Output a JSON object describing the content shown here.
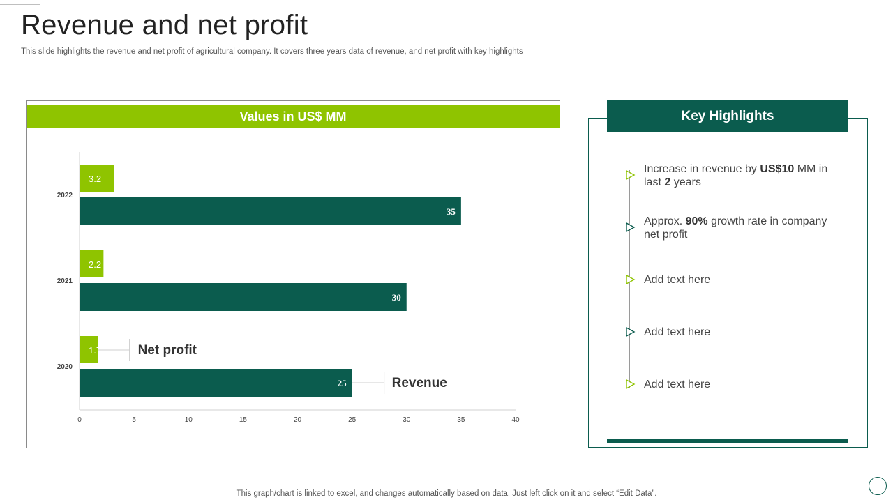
{
  "slide": {
    "title": "Revenue and net profit",
    "subtitle": "This slide highlights the revenue and net profit of agricultural company. It covers three years data of revenue, and net profit with key highlights",
    "footer": "This graph/chart is linked to excel,  and changes automatically based on data. Just left click on it and select “Edit Data”."
  },
  "chart_panel": {
    "banner": "Values in US$ MM"
  },
  "chart_data": {
    "type": "bar",
    "orientation": "horizontal",
    "categories": [
      "2022",
      "2021",
      "2020"
    ],
    "series": [
      {
        "name": "Net profit",
        "values": [
          3.2,
          2.2,
          1.7
        ],
        "color": "#8fc400"
      },
      {
        "name": "Revenue",
        "values": [
          35,
          30,
          25
        ],
        "color": "#0b5c4e"
      }
    ],
    "xlim": [
      0,
      40
    ],
    "xticks": [
      0,
      5,
      10,
      15,
      20,
      25,
      30,
      35,
      40
    ],
    "grid": false,
    "legend": "inline callouts next to the 2020 bars"
  },
  "highlights": {
    "title": "Key Highlights",
    "items": [
      {
        "parts": [
          {
            "t": "Increase  in revenue  by "
          },
          {
            "t": "US$10",
            "b": true
          },
          {
            "t": " MM in last "
          },
          {
            "t": "2",
            "b": true
          },
          {
            "t": " years"
          }
        ],
        "marker_color": "#8fc400"
      },
      {
        "parts": [
          {
            "t": "Approx. "
          },
          {
            "t": "90%",
            "b": true
          },
          {
            "t": " growth rate in company net profit"
          }
        ],
        "marker_color": "#0b5c4e"
      },
      {
        "parts": [
          {
            "t": "Add text here"
          }
        ],
        "marker_color": "#8fc400"
      },
      {
        "parts": [
          {
            "t": "Add text here"
          }
        ],
        "marker_color": "#0b5c4e"
      },
      {
        "parts": [
          {
            "t": "Add text here"
          }
        ],
        "marker_color": "#8fc400"
      }
    ]
  },
  "colors": {
    "accent_green": "#8fc400",
    "dark_teal": "#0b5c4e"
  }
}
